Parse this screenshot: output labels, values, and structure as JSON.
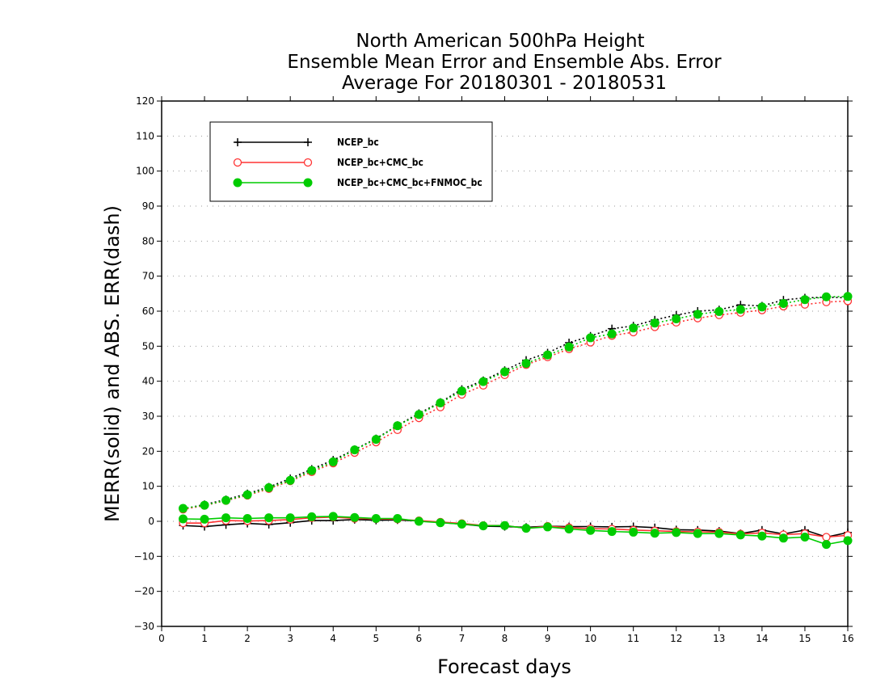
{
  "chart_data": {
    "type": "line",
    "title": [
      "North American 500hPa Height",
      "Ensemble Mean Error and Ensemble Abs. Error",
      "Average For 20180301 - 20180531"
    ],
    "xlabel": "Forecast days",
    "ylabel": "MERR(solid) and ABS. ERR(dash)",
    "xlim": [
      0,
      16
    ],
    "ylim": [
      -30,
      120
    ],
    "xticks": [
      0,
      1,
      2,
      3,
      4,
      5,
      6,
      7,
      8,
      9,
      10,
      11,
      12,
      13,
      14,
      15,
      16
    ],
    "yticks": [
      -30,
      -20,
      -10,
      0,
      10,
      20,
      30,
      40,
      50,
      60,
      70,
      80,
      90,
      100,
      110,
      120
    ],
    "grid": true,
    "legend_position": "top-left",
    "x": [
      0.5,
      1,
      1.5,
      2,
      2.5,
      3,
      3.5,
      4,
      4.5,
      5,
      5.5,
      6,
      6.5,
      7,
      7.5,
      8,
      8.5,
      9,
      9.5,
      10,
      10.5,
      11,
      11.5,
      12,
      12.5,
      13,
      13.5,
      14,
      14.5,
      15,
      15.5,
      16
    ],
    "series": [
      {
        "name": "NCEP_bc",
        "color": "#000000",
        "marker": "plus",
        "merr": [
          -1.2,
          -1.5,
          -1.0,
          -0.6,
          -0.9,
          -0.4,
          0.2,
          0.2,
          0.5,
          0.3,
          0.4,
          0.1,
          -0.3,
          -0.8,
          -1.4,
          -1.5,
          -1.7,
          -1.4,
          -1.5,
          -1.5,
          -1.6,
          -1.5,
          -1.8,
          -2.4,
          -2.5,
          -2.8,
          -3.5,
          -2.5,
          -3.6,
          -2.5,
          -4.5,
          -3.2
        ],
        "abs_err": [
          3.5,
          4.8,
          6.2,
          7.9,
          9.8,
          12.2,
          14.9,
          17.5,
          20.5,
          23.6,
          27.4,
          30.8,
          34.0,
          37.7,
          40.2,
          43.1,
          46.0,
          48.1,
          51.0,
          52.9,
          55.0,
          55.8,
          57.5,
          58.9,
          60.0,
          60.4,
          61.8,
          61.5,
          63.2,
          63.8,
          64.0,
          63.8
        ]
      },
      {
        "name": "NCEP_bc+CMC_bc",
        "color": "#ff3333",
        "marker": "circle-open",
        "merr": [
          -0.5,
          -0.5,
          0.2,
          0.1,
          0.2,
          0.5,
          1.0,
          1.2,
          0.8,
          0.7,
          0.6,
          0.2,
          -0.2,
          -0.6,
          -1.2,
          -1.2,
          -2.0,
          -1.4,
          -1.8,
          -2.1,
          -2.2,
          -2.5,
          -2.7,
          -2.9,
          -3.0,
          -3.1,
          -3.6,
          -3.3,
          -3.8,
          -3.5,
          -4.5,
          -4.0
        ],
        "abs_err": [
          3.4,
          4.5,
          5.9,
          7.4,
          9.3,
          11.5,
          14.1,
          16.6,
          19.6,
          22.6,
          26.1,
          29.5,
          32.6,
          36.2,
          38.8,
          41.8,
          44.7,
          46.9,
          49.2,
          51.1,
          53.0,
          54.0,
          55.5,
          56.8,
          58.0,
          58.9,
          59.6,
          60.3,
          61.4,
          61.9,
          62.6,
          62.9
        ]
      },
      {
        "name": "NCEP_bc+CMC_bc+FNMOC_bc",
        "color": "#00cc00",
        "marker": "circle-filled",
        "merr": [
          0.7,
          0.6,
          1.0,
          0.8,
          1.0,
          1.0,
          1.3,
          1.4,
          1.1,
          0.8,
          0.8,
          0.0,
          -0.4,
          -0.8,
          -1.3,
          -1.2,
          -2.0,
          -1.6,
          -2.2,
          -2.6,
          -2.9,
          -3.1,
          -3.4,
          -3.2,
          -3.5,
          -3.5,
          -3.9,
          -4.2,
          -4.8,
          -4.5,
          -6.6,
          -5.5
        ],
        "abs_err": [
          3.7,
          4.6,
          6.0,
          7.6,
          9.6,
          11.7,
          14.5,
          17.0,
          20.4,
          23.4,
          27.3,
          30.5,
          33.8,
          37.2,
          39.9,
          42.7,
          45.1,
          47.5,
          49.8,
          52.4,
          53.5,
          55.2,
          56.6,
          57.8,
          59.1,
          59.9,
          60.5,
          61.2,
          62.2,
          63.3,
          64.1,
          64.2
        ]
      }
    ]
  }
}
